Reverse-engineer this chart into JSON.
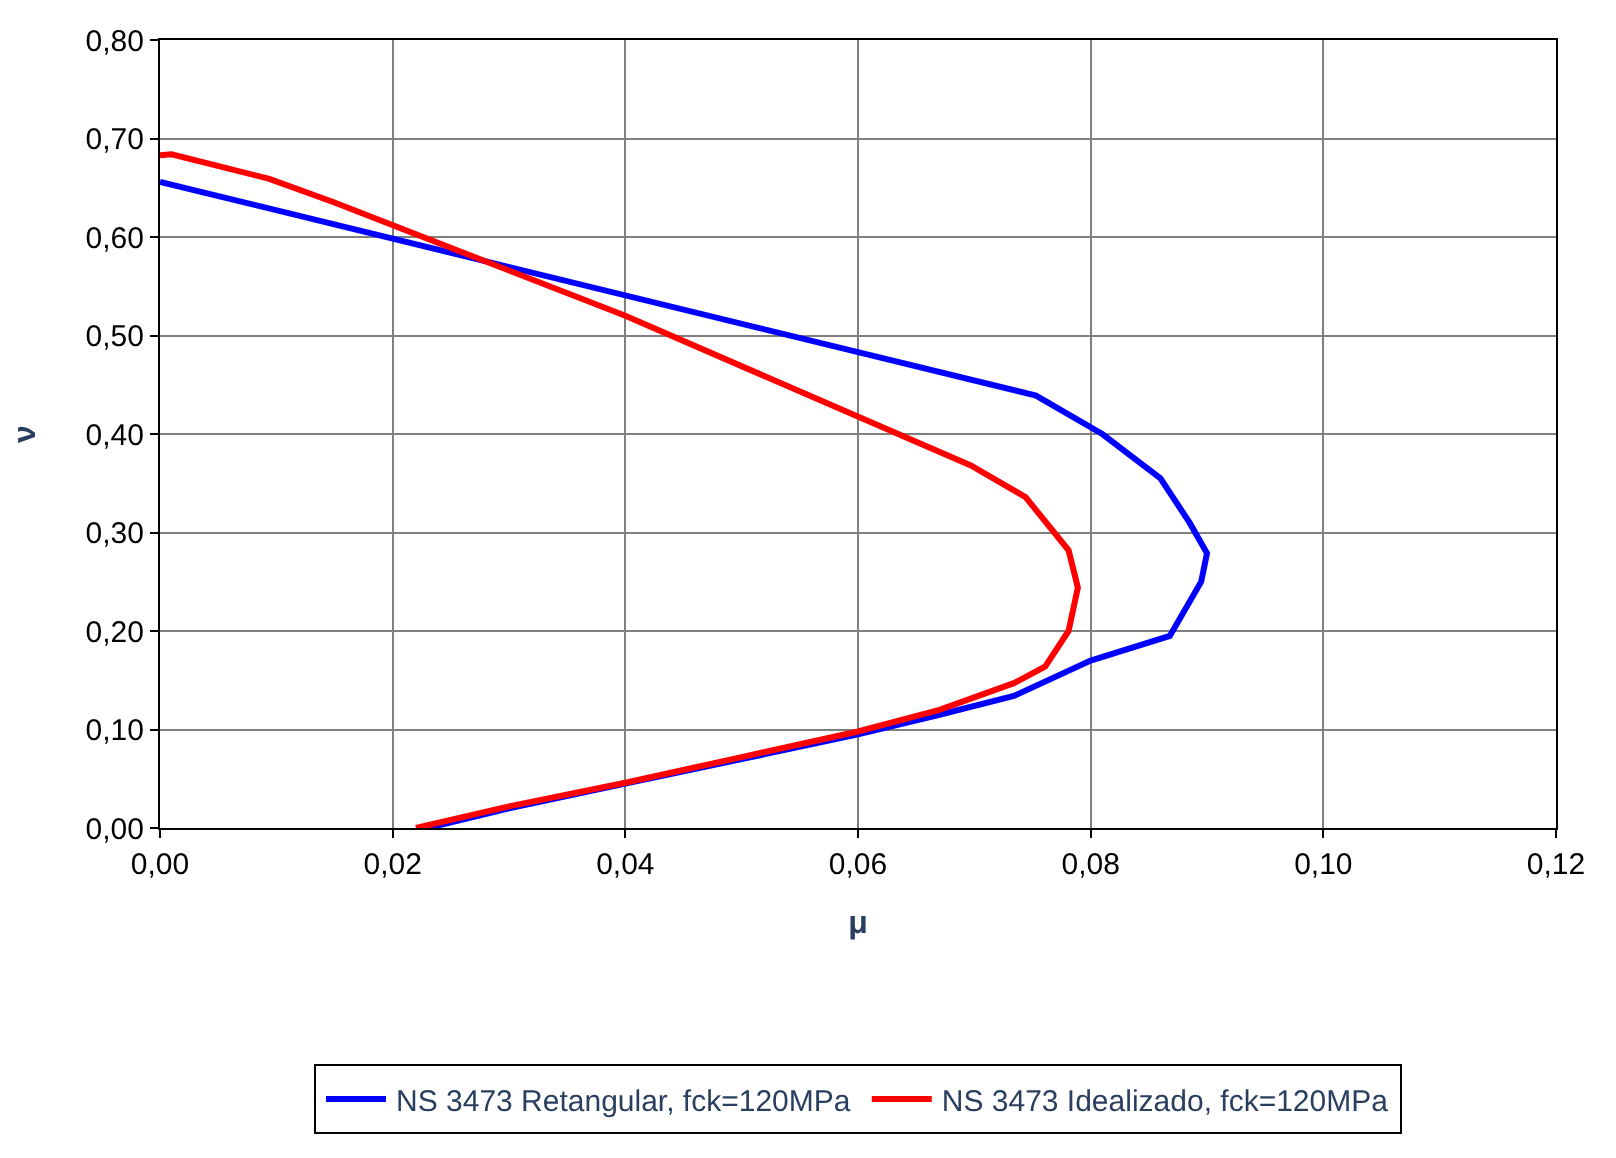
{
  "chart_data": {
    "type": "line",
    "xlabel": "μ",
    "ylabel": "ν",
    "xlim": [
      0,
      0.12
    ],
    "xticks": [
      {
        "value": 0,
        "label": "0,00"
      },
      {
        "value": 0.02,
        "label": "0,02"
      },
      {
        "value": 0.04,
        "label": "0,04"
      },
      {
        "value": 0.06,
        "label": "0,06"
      },
      {
        "value": 0.08,
        "label": "0,08"
      },
      {
        "value": 0.1,
        "label": "0,10"
      },
      {
        "value": 0.12,
        "label": "0,12"
      }
    ],
    "ylim": [
      0,
      0.8
    ],
    "yticks": [
      {
        "value": 0,
        "label": "0,00"
      },
      {
        "value": 0.1,
        "label": "0,10"
      },
      {
        "value": 0.2,
        "label": "0,20"
      },
      {
        "value": 0.3,
        "label": "0,30"
      },
      {
        "value": 0.4,
        "label": "0,40"
      },
      {
        "value": 0.5,
        "label": "0,50"
      },
      {
        "value": 0.6,
        "label": "0,60"
      },
      {
        "value": 0.7,
        "label": "0,70"
      },
      {
        "value": 0.8,
        "label": "0,80"
      }
    ],
    "grid": true,
    "legend": "bottom",
    "marker": "none",
    "line_style": "solid",
    "series": [
      {
        "name": "NS 3473 Retangular, fck=120MPa",
        "color": "#0000ff",
        "x": [
          0,
          0.0753,
          0.081,
          0.086,
          0.0885,
          0.09,
          0.0895,
          0.0868,
          0.08,
          0.0734,
          0.067,
          0.06,
          0.05,
          0.04,
          0.03,
          0.023
        ],
        "values": [
          0.656,
          0.439,
          0.4,
          0.355,
          0.31,
          0.279,
          0.25,
          0.195,
          0.17,
          0.134,
          0.115,
          0.095,
          0.07,
          0.045,
          0.02,
          0
        ]
      },
      {
        "name": "NS 3473 Idealizado, fck=120MPa",
        "color": "#ff0000",
        "x": [
          0,
          0.001,
          0.0094,
          0.015,
          0.04,
          0.0697,
          0.0744,
          0.0781,
          0.0789,
          0.0781,
          0.0761,
          0.0734,
          0.067,
          0.06,
          0.05,
          0.04,
          0.03,
          0.022
        ],
        "values": [
          0.683,
          0.684,
          0.659,
          0.635,
          0.52,
          0.368,
          0.336,
          0.282,
          0.244,
          0.2,
          0.164,
          0.147,
          0.12,
          0.098,
          0.072,
          0.046,
          0.022,
          0
        ]
      }
    ]
  }
}
